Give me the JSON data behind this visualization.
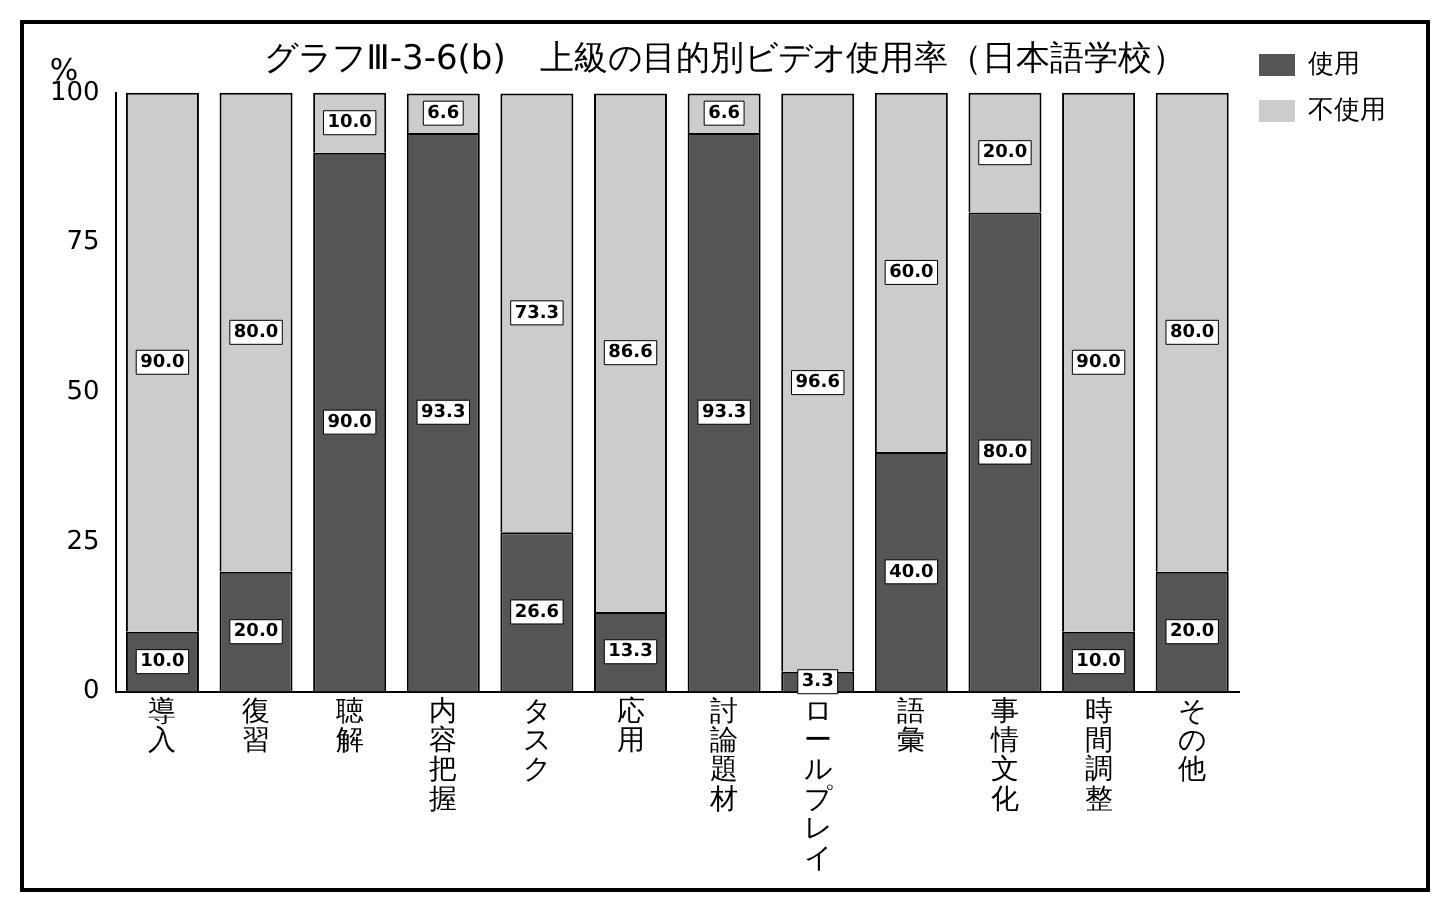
{
  "chart_data": {
    "type": "bar",
    "title": "グラフⅢ-3-6(b)　上級の目的別ビデオ使用率（日本語学校）",
    "ylabel": "%",
    "categories": [
      "導入",
      "復習",
      "聴解",
      "内容把握",
      "タスク",
      "応用",
      "討論題材",
      "ロールプレイ",
      "語彙",
      "事情文化",
      "時間調整",
      "その他"
    ],
    "stacked": true,
    "series": [
      {
        "name": "使用",
        "color": "#555555",
        "values": [
          10,
          20,
          90,
          93.3,
          26.6,
          13.3,
          93.3,
          3.3,
          40,
          80,
          10,
          20
        ],
        "value_labels": [
          "10.0",
          "20.0",
          "90.0",
          "93.3",
          "26.6",
          "13.3",
          "93.3",
          "3.3",
          "40.0",
          "80.0",
          "10.0",
          "20.0"
        ]
      },
      {
        "name": "不使用",
        "color": "#cccccc",
        "values": [
          90,
          80,
          10,
          6.6,
          73.3,
          86.6,
          6.6,
          96.6,
          60,
          20,
          90,
          80
        ],
        "value_labels": [
          "90.0",
          "80.0",
          "10.0",
          "6.6",
          "73.3",
          "86.6",
          "6.6",
          "96.6",
          "60.0",
          "20.0",
          "90.0",
          "80.0"
        ]
      }
    ],
    "ylim": [
      0,
      100
    ],
    "yticks": [
      0,
      25,
      50,
      75,
      100
    ],
    "grid": false,
    "legend": "top right"
  }
}
